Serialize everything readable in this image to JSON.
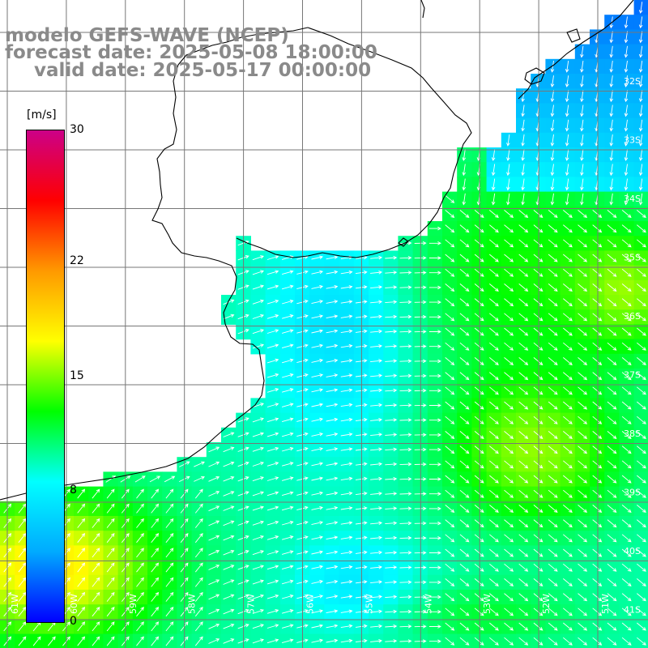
{
  "title": {
    "line1": "modelo GEFS-WAVE (NCEP)",
    "line2": "forecast date: 2025-05-08 18:00:00",
    "line3": "valid date: 2025-05-17 00:00:00"
  },
  "legend": {
    "unit": "[m/s]",
    "ticks": [
      {
        "value": 30,
        "label": "30"
      },
      {
        "value": 22,
        "label": "22"
      },
      {
        "value": 15,
        "label": "15"
      },
      {
        "value": 8,
        "label": "8"
      },
      {
        "value": 0,
        "label": "0"
      }
    ],
    "colors": [
      "#0000ff",
      "#00aaff",
      "#00ffff",
      "#00ff00",
      "#ffff00",
      "#ff9900",
      "#ff0000",
      "#cc0088"
    ]
  },
  "lat_labels": [
    "32S",
    "33S",
    "34S",
    "35S",
    "36S",
    "37S",
    "38S",
    "39S",
    "40S",
    "41S"
  ],
  "lon_labels": [
    "61W",
    "60W",
    "59W",
    "58W",
    "57W",
    "56W",
    "55W",
    "54W",
    "53W",
    "52W",
    "51W"
  ],
  "colors": {
    "land": "#ffffff",
    "grid": "#777777",
    "coast": "#000000",
    "arrow": "#ffffff",
    "title": "#8a8a8a"
  }
}
